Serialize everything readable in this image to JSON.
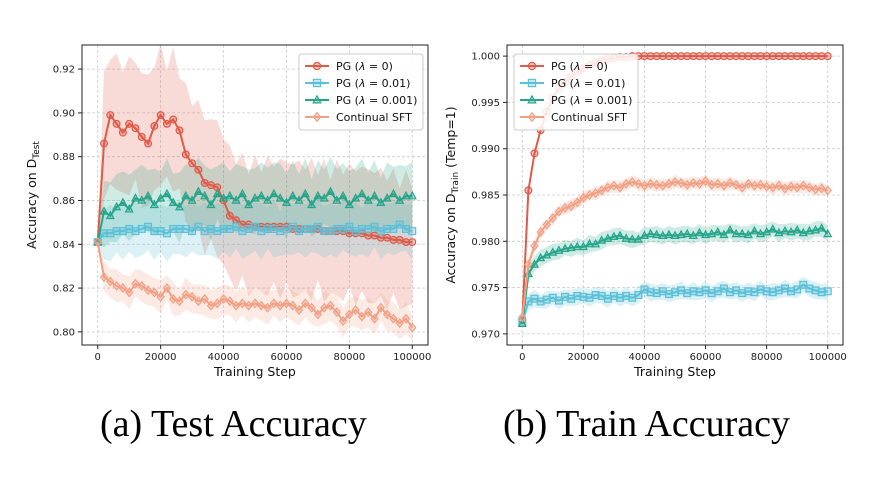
{
  "colors": {
    "pg0": "#e05a47",
    "pg001": "#5bc0d8",
    "pg0001": "#26a58a",
    "sft": "#f2a085"
  },
  "captions": {
    "a": "(a) Test Accuracy",
    "b": "(b) Train Accuracy"
  },
  "chart_data": [
    {
      "type": "line",
      "xlabel": "Training Step",
      "ylabel_main": "Accuracy on D",
      "ylabel_sub": "Test",
      "ylabel_suffix": "",
      "xlim": [
        -5000,
        105000
      ],
      "ylim": [
        0.794,
        0.931
      ],
      "xticks": [
        0,
        20000,
        40000,
        60000,
        80000,
        100000
      ],
      "xtick_labels": [
        "0",
        "20000",
        "40000",
        "60000",
        "80000",
        "100000"
      ],
      "yticks": [
        0.8,
        0.82,
        0.84,
        0.86,
        0.88,
        0.9,
        0.92
      ],
      "ytick_labels": [
        "0.80",
        "0.82",
        "0.84",
        "0.86",
        "0.88",
        "0.90",
        "0.92"
      ],
      "grid": true,
      "legend": "top-right",
      "series": [
        {
          "name_prefix": "PG (",
          "name_lambda": "λ",
          "name_suffix": " = 0)",
          "color_key": "pg0",
          "marker": "circle",
          "x": [
            0,
            2000,
            4000,
            6000,
            8000,
            10000,
            12000,
            14000,
            16000,
            18000,
            20000,
            22000,
            24000,
            26000,
            28000,
            30000,
            32000,
            34000,
            36000,
            38000,
            40000,
            42000,
            44000,
            46000,
            48000,
            50000,
            52000,
            54000,
            56000,
            58000,
            60000,
            62000,
            64000,
            66000,
            68000,
            70000,
            72000,
            74000,
            76000,
            78000,
            80000,
            82000,
            84000,
            86000,
            88000,
            90000,
            92000,
            94000,
            96000,
            98000,
            100000
          ],
          "y": [
            0.841,
            0.886,
            0.899,
            0.895,
            0.891,
            0.895,
            0.893,
            0.889,
            0.886,
            0.894,
            0.899,
            0.895,
            0.897,
            0.892,
            0.881,
            0.877,
            0.874,
            0.868,
            0.867,
            0.866,
            0.86,
            0.853,
            0.851,
            0.849,
            0.849,
            0.848,
            0.848,
            0.848,
            0.848,
            0.848,
            0.848,
            0.847,
            0.847,
            0.847,
            0.847,
            0.847,
            0.846,
            0.846,
            0.846,
            0.846,
            0.845,
            0.845,
            0.845,
            0.844,
            0.844,
            0.843,
            0.843,
            0.842,
            0.842,
            0.841,
            0.841
          ],
          "band": 0.03
        },
        {
          "name_prefix": "PG (",
          "name_lambda": "λ",
          "name_suffix": " = 0.01)",
          "color_key": "pg001",
          "marker": "square",
          "x": [
            0,
            2000,
            4000,
            6000,
            8000,
            10000,
            12000,
            14000,
            16000,
            18000,
            20000,
            22000,
            24000,
            26000,
            28000,
            30000,
            32000,
            34000,
            36000,
            38000,
            40000,
            42000,
            44000,
            46000,
            48000,
            50000,
            52000,
            54000,
            56000,
            58000,
            60000,
            62000,
            64000,
            66000,
            68000,
            70000,
            72000,
            74000,
            76000,
            78000,
            80000,
            82000,
            84000,
            86000,
            88000,
            90000,
            92000,
            94000,
            96000,
            98000,
            100000
          ],
          "y": [
            0.841,
            0.845,
            0.845,
            0.846,
            0.846,
            0.847,
            0.846,
            0.847,
            0.848,
            0.846,
            0.846,
            0.845,
            0.847,
            0.847,
            0.847,
            0.846,
            0.848,
            0.846,
            0.847,
            0.846,
            0.847,
            0.847,
            0.848,
            0.846,
            0.847,
            0.848,
            0.846,
            0.847,
            0.847,
            0.846,
            0.847,
            0.848,
            0.846,
            0.847,
            0.847,
            0.848,
            0.846,
            0.846,
            0.847,
            0.847,
            0.848,
            0.846,
            0.847,
            0.847,
            0.848,
            0.846,
            0.847,
            0.847,
            0.849,
            0.847,
            0.846
          ],
          "band": 0.012
        },
        {
          "name_prefix": "PG (",
          "name_lambda": "λ",
          "name_suffix": " = 0.001)",
          "color_key": "pg0001",
          "marker": "triangle",
          "x": [
            0,
            2000,
            4000,
            6000,
            8000,
            10000,
            12000,
            14000,
            16000,
            18000,
            20000,
            22000,
            24000,
            26000,
            28000,
            30000,
            32000,
            34000,
            36000,
            38000,
            40000,
            42000,
            44000,
            46000,
            48000,
            50000,
            52000,
            54000,
            56000,
            58000,
            60000,
            62000,
            64000,
            66000,
            68000,
            70000,
            72000,
            74000,
            76000,
            78000,
            80000,
            82000,
            84000,
            86000,
            88000,
            90000,
            92000,
            94000,
            96000,
            98000,
            100000
          ],
          "y": [
            0.841,
            0.855,
            0.853,
            0.857,
            0.859,
            0.856,
            0.861,
            0.86,
            0.862,
            0.858,
            0.861,
            0.863,
            0.859,
            0.857,
            0.862,
            0.86,
            0.864,
            0.862,
            0.858,
            0.863,
            0.861,
            0.862,
            0.86,
            0.863,
            0.858,
            0.861,
            0.862,
            0.86,
            0.863,
            0.861,
            0.859,
            0.862,
            0.86,
            0.863,
            0.858,
            0.862,
            0.861,
            0.864,
            0.86,
            0.862,
            0.858,
            0.861,
            0.863,
            0.86,
            0.862,
            0.859,
            0.861,
            0.863,
            0.86,
            0.862,
            0.862
          ],
          "band": 0.015
        },
        {
          "name_prefix": "Continual SFT",
          "name_lambda": "",
          "name_suffix": "",
          "color_key": "sft",
          "marker": "diamond",
          "x": [
            0,
            2000,
            4000,
            6000,
            8000,
            10000,
            12000,
            14000,
            16000,
            18000,
            20000,
            22000,
            24000,
            26000,
            28000,
            30000,
            32000,
            34000,
            36000,
            38000,
            40000,
            42000,
            44000,
            46000,
            48000,
            50000,
            52000,
            54000,
            56000,
            58000,
            60000,
            62000,
            64000,
            66000,
            68000,
            70000,
            72000,
            74000,
            76000,
            78000,
            80000,
            82000,
            84000,
            86000,
            88000,
            90000,
            92000,
            94000,
            96000,
            98000,
            100000
          ],
          "y": [
            0.841,
            0.825,
            0.823,
            0.821,
            0.82,
            0.818,
            0.822,
            0.821,
            0.819,
            0.818,
            0.816,
            0.82,
            0.815,
            0.814,
            0.817,
            0.816,
            0.814,
            0.815,
            0.812,
            0.813,
            0.815,
            0.814,
            0.812,
            0.813,
            0.812,
            0.813,
            0.812,
            0.811,
            0.813,
            0.812,
            0.813,
            0.812,
            0.81,
            0.813,
            0.811,
            0.808,
            0.811,
            0.812,
            0.809,
            0.805,
            0.808,
            0.81,
            0.807,
            0.809,
            0.806,
            0.811,
            0.808,
            0.806,
            0.804,
            0.806,
            0.802
          ],
          "band": 0.007
        }
      ]
    },
    {
      "type": "line",
      "xlabel": "Training Step",
      "ylabel_main": "Accuracy on D",
      "ylabel_sub": "Train",
      "ylabel_suffix": " (Temp=1)",
      "xlim": [
        -5000,
        105000
      ],
      "ylim": [
        0.9688,
        1.0012
      ],
      "xticks": [
        0,
        20000,
        40000,
        60000,
        80000,
        100000
      ],
      "xtick_labels": [
        "0",
        "20000",
        "40000",
        "60000",
        "80000",
        "100000"
      ],
      "yticks": [
        0.97,
        0.975,
        0.98,
        0.985,
        0.99,
        0.995,
        1.0
      ],
      "ytick_labels": [
        "0.970",
        "0.975",
        "0.980",
        "0.985",
        "0.990",
        "0.995",
        "1.000"
      ],
      "grid": true,
      "legend": "top-left",
      "series": [
        {
          "name_prefix": "PG (",
          "name_lambda": "λ",
          "name_suffix": " = 0)",
          "color_key": "pg0",
          "marker": "circle",
          "x": [
            0,
            2000,
            4000,
            6000,
            8000,
            10000,
            12000,
            14000,
            16000,
            18000,
            20000,
            22000,
            24000,
            26000,
            28000,
            30000,
            32000,
            34000,
            36000,
            38000,
            40000,
            42000,
            44000,
            46000,
            48000,
            50000,
            52000,
            54000,
            56000,
            58000,
            60000,
            62000,
            64000,
            66000,
            68000,
            70000,
            72000,
            74000,
            76000,
            78000,
            80000,
            82000,
            84000,
            86000,
            88000,
            90000,
            92000,
            94000,
            96000,
            98000,
            100000
          ],
          "y": [
            0.9715,
            0.9855,
            0.9895,
            0.992,
            0.994,
            0.9955,
            0.9965,
            0.9972,
            0.9978,
            0.9983,
            0.9987,
            0.999,
            0.9993,
            0.9995,
            0.9997,
            0.9998,
            0.9999,
            0.9999,
            1.0,
            1.0,
            1.0,
            1.0,
            1.0,
            1.0,
            1.0,
            1.0,
            1.0,
            1.0,
            1.0,
            1.0,
            1.0,
            1.0,
            1.0,
            1.0,
            1.0,
            1.0,
            1.0,
            1.0,
            1.0,
            1.0,
            1.0,
            1.0,
            1.0,
            1.0,
            1.0,
            1.0,
            1.0,
            1.0,
            1.0,
            1.0,
            1.0
          ],
          "band": 0.0
        },
        {
          "name_prefix": "PG (",
          "name_lambda": "λ",
          "name_suffix": " = 0.01)",
          "color_key": "pg001",
          "marker": "square",
          "x": [
            0,
            2000,
            4000,
            6000,
            8000,
            10000,
            12000,
            14000,
            16000,
            18000,
            20000,
            22000,
            24000,
            26000,
            28000,
            30000,
            32000,
            34000,
            36000,
            38000,
            40000,
            42000,
            44000,
            46000,
            48000,
            50000,
            52000,
            54000,
            56000,
            58000,
            60000,
            62000,
            64000,
            66000,
            68000,
            70000,
            72000,
            74000,
            76000,
            78000,
            80000,
            82000,
            84000,
            86000,
            88000,
            90000,
            92000,
            94000,
            96000,
            98000,
            100000
          ],
          "y": [
            0.9712,
            0.9735,
            0.9738,
            0.9735,
            0.9737,
            0.9739,
            0.9736,
            0.974,
            0.9738,
            0.9741,
            0.974,
            0.9739,
            0.9742,
            0.9741,
            0.9738,
            0.9741,
            0.9739,
            0.9741,
            0.9739,
            0.9742,
            0.9748,
            0.9745,
            0.9744,
            0.9746,
            0.9743,
            0.9745,
            0.9747,
            0.9744,
            0.9746,
            0.9745,
            0.9747,
            0.9744,
            0.9746,
            0.9749,
            0.9745,
            0.9747,
            0.9744,
            0.9746,
            0.9745,
            0.9748,
            0.9746,
            0.9745,
            0.9747,
            0.9749,
            0.9746,
            0.9748,
            0.9753,
            0.9749,
            0.9747,
            0.9745,
            0.9746
          ],
          "band": 0.0009
        },
        {
          "name_prefix": "PG (",
          "name_lambda": "λ",
          "name_suffix": " = 0.001)",
          "color_key": "pg0001",
          "marker": "triangle",
          "x": [
            0,
            2000,
            4000,
            6000,
            8000,
            10000,
            12000,
            14000,
            16000,
            18000,
            20000,
            22000,
            24000,
            26000,
            28000,
            30000,
            32000,
            34000,
            36000,
            38000,
            40000,
            42000,
            44000,
            46000,
            48000,
            50000,
            52000,
            54000,
            56000,
            58000,
            60000,
            62000,
            64000,
            66000,
            68000,
            70000,
            72000,
            74000,
            76000,
            78000,
            80000,
            82000,
            84000,
            86000,
            88000,
            90000,
            92000,
            94000,
            96000,
            98000,
            100000
          ],
          "y": [
            0.9711,
            0.9765,
            0.9775,
            0.9782,
            0.9785,
            0.9788,
            0.979,
            0.9792,
            0.9793,
            0.9794,
            0.9794,
            0.9797,
            0.9797,
            0.9801,
            0.9803,
            0.9805,
            0.9806,
            0.9803,
            0.9802,
            0.9802,
            0.9806,
            0.9808,
            0.9807,
            0.9806,
            0.9807,
            0.9806,
            0.9807,
            0.9808,
            0.9806,
            0.9809,
            0.9807,
            0.9808,
            0.981,
            0.9807,
            0.9812,
            0.9808,
            0.9808,
            0.9807,
            0.9811,
            0.9808,
            0.981,
            0.9813,
            0.9809,
            0.9811,
            0.981,
            0.9812,
            0.9809,
            0.9811,
            0.9812,
            0.9814,
            0.9808
          ],
          "band": 0.0009
        },
        {
          "name_prefix": "Continual SFT",
          "name_lambda": "",
          "name_suffix": "",
          "color_key": "sft",
          "marker": "diamond",
          "x": [
            0,
            2000,
            4000,
            6000,
            8000,
            10000,
            12000,
            14000,
            16000,
            18000,
            20000,
            22000,
            24000,
            26000,
            28000,
            30000,
            32000,
            34000,
            36000,
            38000,
            40000,
            42000,
            44000,
            46000,
            48000,
            50000,
            52000,
            54000,
            56000,
            58000,
            60000,
            62000,
            64000,
            66000,
            68000,
            70000,
            72000,
            74000,
            76000,
            78000,
            80000,
            82000,
            84000,
            86000,
            88000,
            90000,
            92000,
            94000,
            96000,
            98000,
            100000
          ],
          "y": [
            0.9718,
            0.9775,
            0.9795,
            0.981,
            0.9818,
            0.9825,
            0.9832,
            0.9836,
            0.9838,
            0.9842,
            0.9847,
            0.985,
            0.9852,
            0.9855,
            0.9858,
            0.986,
            0.9858,
            0.9862,
            0.9864,
            0.9862,
            0.986,
            0.9862,
            0.9861,
            0.986,
            0.9862,
            0.9864,
            0.9863,
            0.9861,
            0.9863,
            0.9862,
            0.9865,
            0.9861,
            0.9862,
            0.986,
            0.9863,
            0.9861,
            0.9858,
            0.9862,
            0.986,
            0.9861,
            0.9859,
            0.9858,
            0.986,
            0.9857,
            0.9859,
            0.9858,
            0.986,
            0.9858,
            0.9856,
            0.9857,
            0.9855
          ],
          "band": 0.0007
        }
      ]
    }
  ]
}
